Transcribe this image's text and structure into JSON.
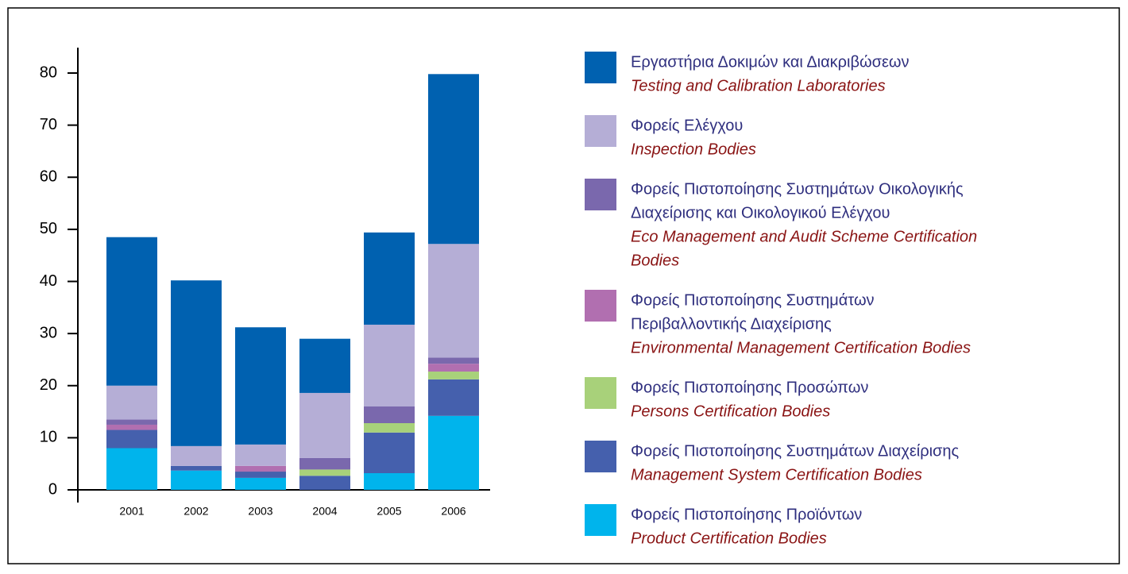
{
  "chart_data": {
    "type": "stacked_bar",
    "categories": [
      "2001",
      "2002",
      "2003",
      "2004",
      "2005",
      "2006"
    ],
    "ylim": [
      0,
      80
    ],
    "yticks": [
      0,
      10,
      20,
      30,
      40,
      50,
      60,
      70,
      80
    ],
    "series": [
      {
        "name": [
          "Φορείς Πιστοποίησης Προϊόντων"
        ],
        "name_en": [
          "Product Certification Bodies"
        ],
        "color": "#00b4ec",
        "values": [
          8,
          3.7,
          2.3,
          0,
          3.2,
          14.2
        ]
      },
      {
        "name": [
          "Φορείς Πιστοποίησης Συστημάτων Διαχείρισης"
        ],
        "name_en": [
          "Management System Certification Bodies"
        ],
        "color": "#4560ad",
        "values": [
          3.5,
          0.9,
          1.2,
          2.7,
          7.8,
          7.0
        ]
      },
      {
        "name": [
          "Φορείς Πιστοποίησης Προσώπων"
        ],
        "name_en": [
          "Persons Certification Bodies"
        ],
        "color": "#a8d17a",
        "values": [
          0,
          0,
          0,
          1.2,
          1.8,
          1.5
        ]
      },
      {
        "name": [
          "Φορείς Πιστοποίησης Συστημάτων",
          "Περιβαλλοντικής Διαχείρισης"
        ],
        "name_en": [
          "Environmental Management Certification Bodies"
        ],
        "color": "#b16fb0",
        "values": [
          1,
          0,
          1.1,
          0,
          0,
          1.5
        ]
      },
      {
        "name": [
          "Φορείς Πιστοποίησης Συστημάτων Οικολογικής",
          "Διαχείρισης και Οικολογικού Ελέγχου"
        ],
        "name_en": [
          "Eco Management and Audit Scheme Certification",
          "Bodies"
        ],
        "color": "#7a68ad",
        "values": [
          1,
          0,
          0,
          2.2,
          3.2,
          1.2
        ]
      },
      {
        "name": [
          "Φορείς Ελέγχου"
        ],
        "name_en": [
          "Inspection Bodies"
        ],
        "color": "#b5aed6",
        "values": [
          6.5,
          3.8,
          4.1,
          12.5,
          15.7,
          21.8
        ]
      },
      {
        "name": [
          "Εργαστήρια Δοκιμών και Διακριβώσεων"
        ],
        "name_en": [
          "Testing and Calibration Laboratories"
        ],
        "color": "#0061b0",
        "values": [
          28.5,
          31.8,
          22.5,
          10.4,
          17.7,
          32.6
        ]
      }
    ]
  }
}
